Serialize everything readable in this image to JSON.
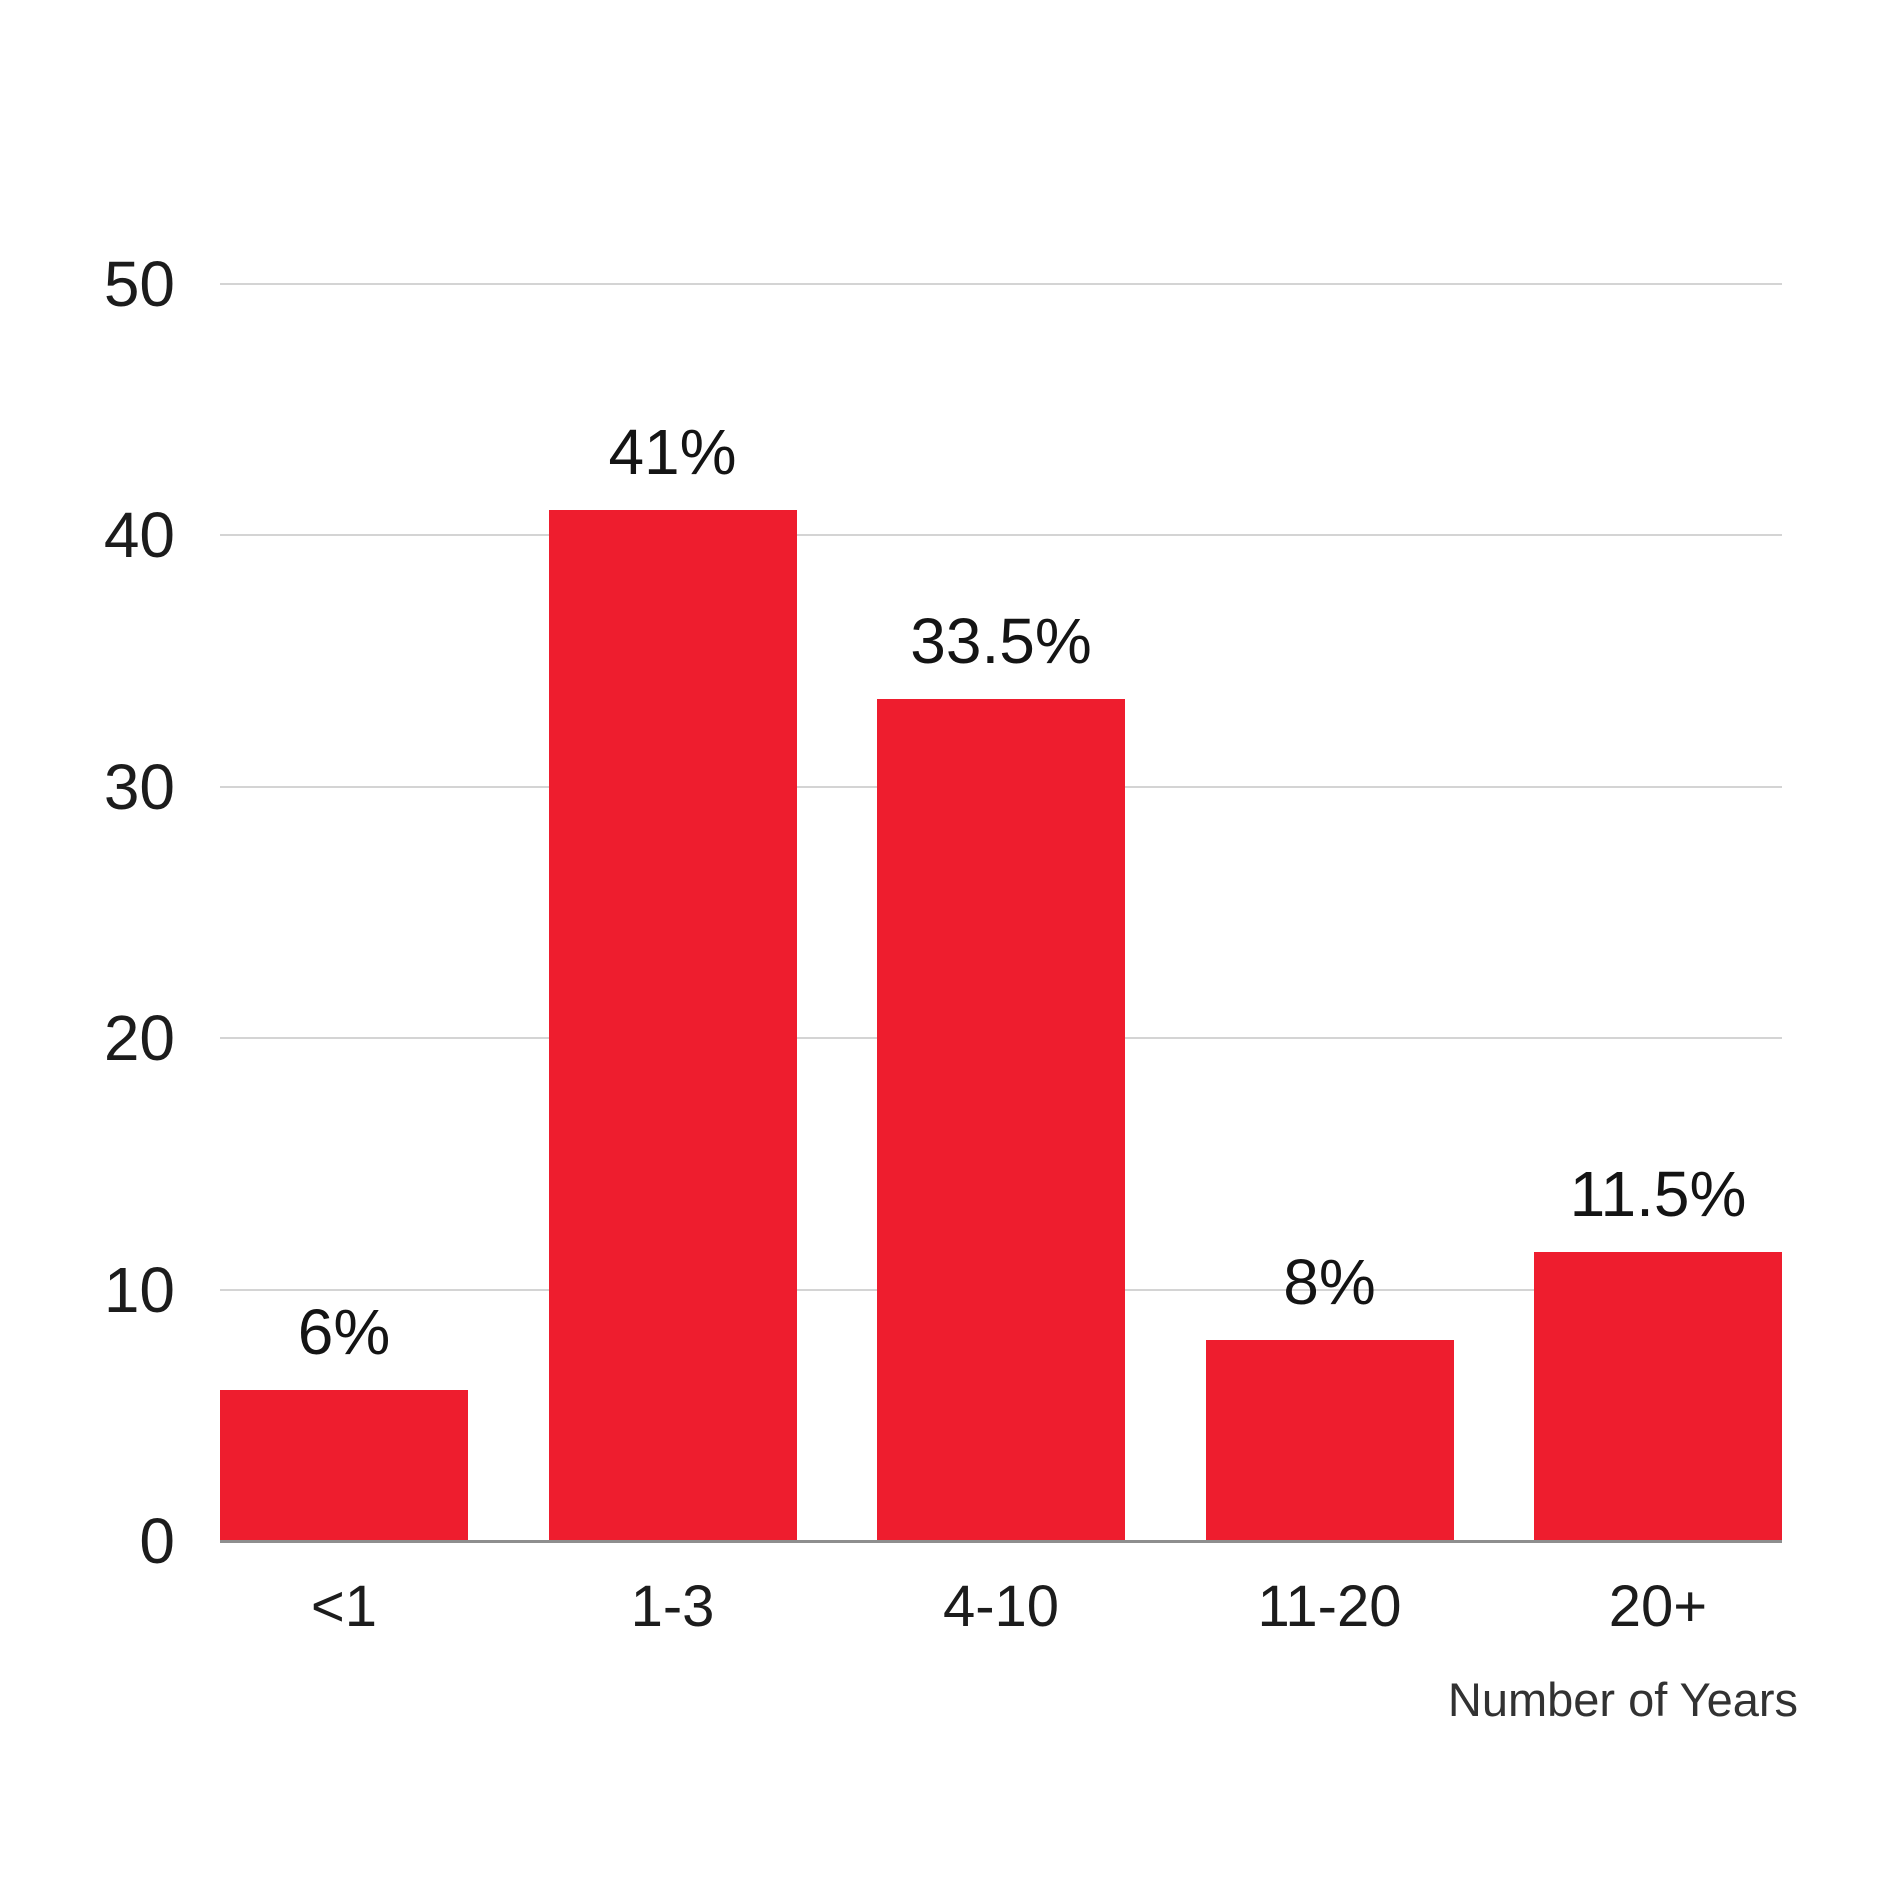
{
  "chart_data": {
    "type": "bar",
    "categories": [
      "<1",
      "1-3",
      "4-10",
      "11-20",
      "20+"
    ],
    "values": [
      6,
      41,
      33.5,
      8,
      11.5
    ],
    "value_labels": [
      "6%",
      "41%",
      "33.5%",
      "8%",
      "11.5%"
    ],
    "title": "",
    "xlabel": "Number of Years",
    "ylabel": "",
    "ylim": [
      0,
      50
    ],
    "yticks": [
      0,
      10,
      20,
      30,
      40,
      50
    ],
    "grid": true,
    "legend": false,
    "bar_color": "#EE1D2E",
    "gridline_color": "#d4d4d4",
    "baseline_color": "#8e8e8e",
    "text_color": "#1c1c1c"
  }
}
